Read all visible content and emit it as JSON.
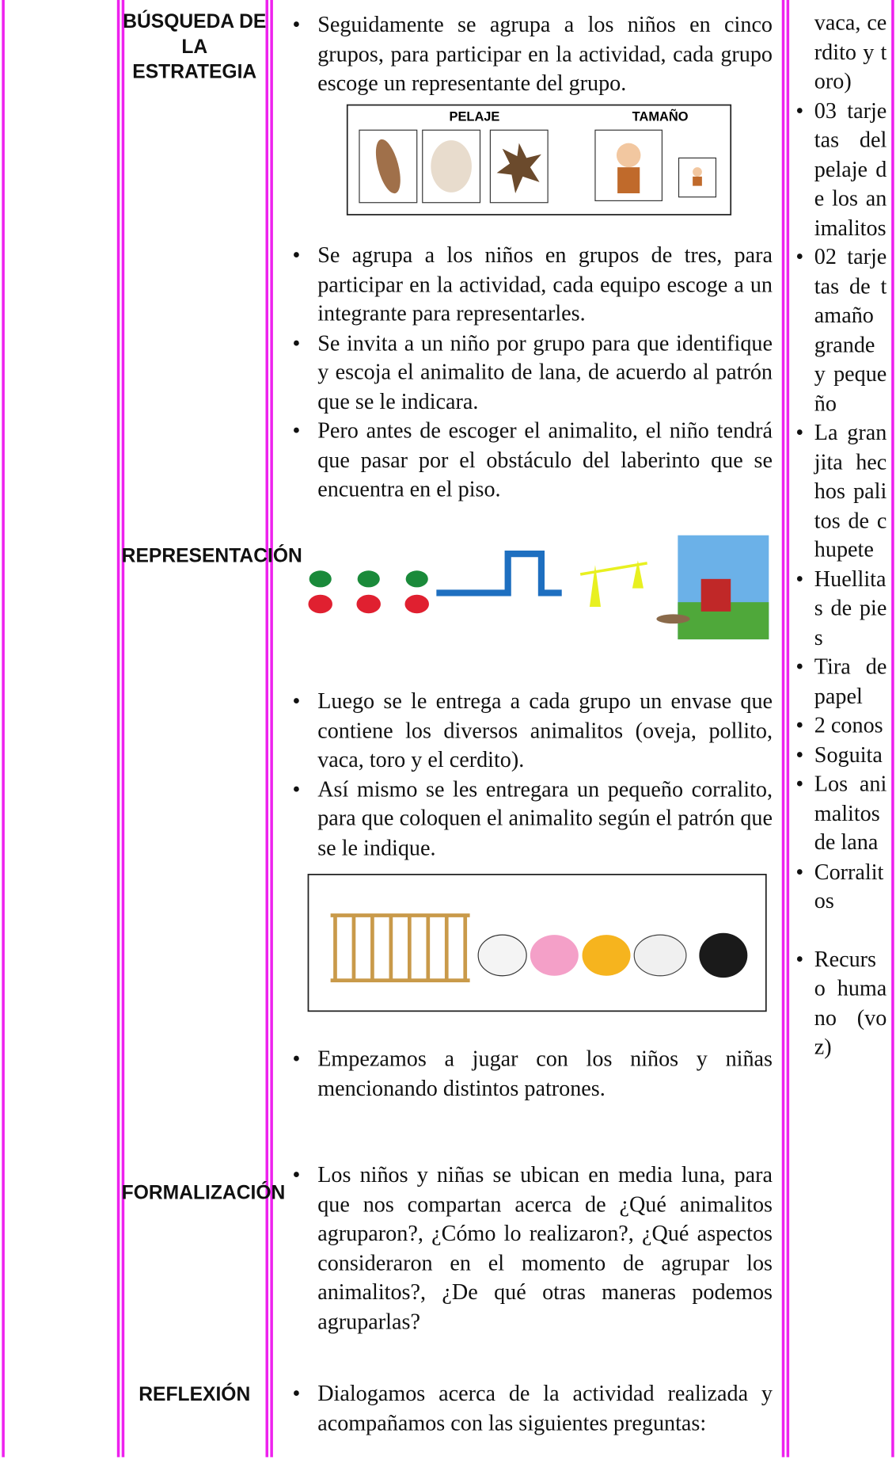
{
  "phases": [
    "BÚSQUEDA DE LA ESTRATEGIA",
    "REPRESENTACIÓN",
    "FORMALIZACIÓN",
    "REFLEXIÓN"
  ],
  "activities": [
    [
      "Seguidamente se agrupa a los niños en cinco grupos, para participar en la actividad, cada grupo escoge un representante del grupo."
    ],
    [
      "Se agrupa a los niños en grupos de tres, para participar en la actividad, cada equipo escoge a un integrante para representarles.",
      "Se invita a un niño por grupo para que identifique y escoja el animalito de lana, de acuerdo al patrón que se le indicara.",
      "Pero antes de escoger el animalito, el niño tendrá que pasar por el obstáculo del laberinto que se encuentra en el piso."
    ],
    [
      "Luego se le entrega a cada grupo un envase que contiene los diversos animalitos (oveja, pollito, vaca, toro y el cerdito).",
      "Así mismo se les entregara un pequeño corralito, para que coloquen el animalito según el patrón que se le indique."
    ],
    [
      "Empezamos a jugar con los niños y niñas mencionando distintos patrones."
    ],
    [
      "Los niños y niñas se ubican en media luna, para que nos compartan acerca de ¿Qué animalitos agruparon?, ¿Cómo lo realizaron?, ¿Qué aspectos consideraron en el momento de agrupar los animalitos?, ¿De qué otras maneras podemos agruparlas?"
    ],
    [
      "Dialogamos acerca de la actividad realizada y acompañamos con las siguientes preguntas:"
    ]
  ],
  "image_labels": [
    "PELAJE",
    "TAMAÑO"
  ],
  "resources_continued": "vaca, cerdito y toro)",
  "resources": [
    "03 tarjetas del pelaje de los animalitos",
    "02 tarjetas de tamaño grande y pequeño",
    "La granjita hechos palitos de chupete",
    "Huellitas de pies",
    "Tira de papel",
    "2 conos",
    "Soguita",
    "Los animalitos de lana",
    "Corralitos",
    "Recurso humano (voz)"
  ]
}
